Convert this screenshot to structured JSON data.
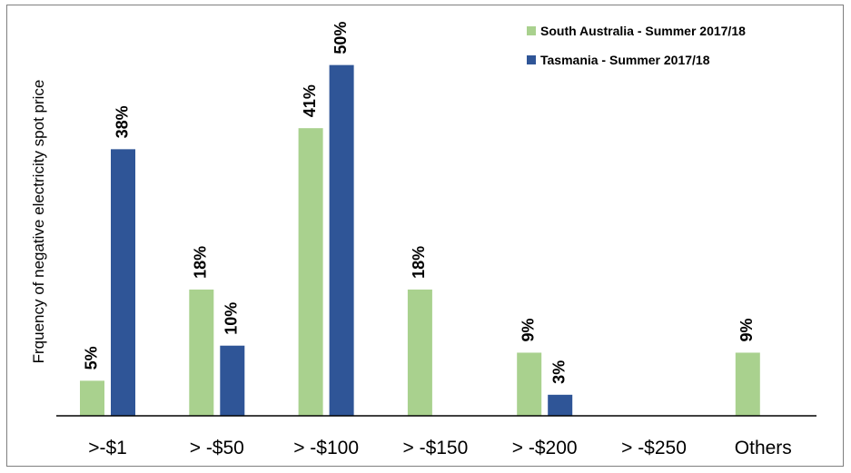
{
  "chart_data": {
    "type": "bar",
    "ylabel": "Frquency of negative electricity spot price",
    "xlabel": "",
    "categories": [
      ">-$1",
      "> -$50",
      "> -$100",
      "> -$150",
      "> -$200",
      "> -$250",
      "Others"
    ],
    "series": [
      {
        "name": "South Australia - Summer 2017/18",
        "color": "#a9d18e",
        "values": [
          5,
          18,
          41,
          18,
          9,
          null,
          9
        ],
        "labels": [
          "5%",
          "18%",
          "41%",
          "18%",
          "9%",
          "",
          "9%"
        ]
      },
      {
        "name": "Tasmania - Summer 2017/18",
        "color": "#2f5597",
        "values": [
          38,
          10,
          50,
          null,
          3,
          null,
          null
        ],
        "labels": [
          "38%",
          "10%",
          "50%",
          "",
          "3%",
          "",
          ""
        ]
      }
    ],
    "ylim": [
      0,
      55
    ],
    "grid": false,
    "legend_position": "top-right",
    "axis_color": "#000000"
  }
}
